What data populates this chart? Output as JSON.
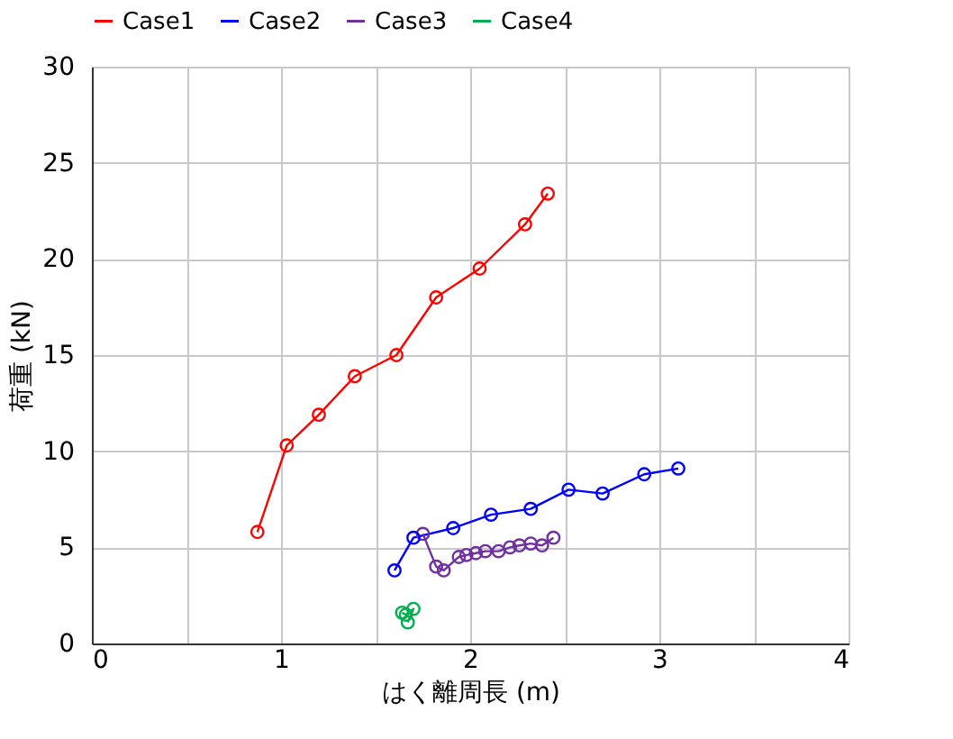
{
  "chart_data": {
    "type": "line",
    "xlabel": "はく離周長 (m)",
    "ylabel": "荷重 (kN)",
    "xlim": [
      0,
      4
    ],
    "ylim": [
      0,
      30
    ],
    "xticks": [
      0,
      {
        "value": 0.5,
        "label": null
      },
      1,
      {
        "value": 1.5,
        "label": null
      },
      2,
      {
        "value": 2.5,
        "label": null
      },
      3,
      {
        "value": 3.5,
        "label": null
      },
      4
    ],
    "yticks": [
      0,
      5,
      10,
      15,
      20,
      25,
      30
    ],
    "grid": true,
    "legend": "top",
    "marker": "circle",
    "line_style": "solid",
    "series": [
      {
        "name": "Case1",
        "color": "#ff0000",
        "x": [
          0.875,
          1.03,
          1.2,
          1.39,
          1.61,
          1.82,
          2.05,
          2.29,
          2.41
        ],
        "values": [
          5.8,
          10.3,
          11.9,
          13.9,
          15.0,
          18.0,
          19.5,
          21.8,
          23.4
        ]
      },
      {
        "name": "Case2",
        "color": "#0000ff",
        "x": [
          1.6,
          1.7,
          1.91,
          2.11,
          2.32,
          2.52,
          2.7,
          2.92,
          3.1
        ],
        "values": [
          3.8,
          5.5,
          6.0,
          6.7,
          7.0,
          8.0,
          7.8,
          8.8,
          9.1
        ]
      },
      {
        "name": "Case3",
        "color": "#7030a0",
        "x": [
          1.75,
          1.82,
          1.86,
          1.94,
          1.98,
          2.03,
          2.08,
          2.15,
          2.21,
          2.26,
          2.32,
          2.38,
          2.44
        ],
        "values": [
          5.7,
          4.0,
          3.8,
          4.5,
          4.6,
          4.7,
          4.8,
          4.8,
          5.0,
          5.1,
          5.2,
          5.1,
          5.5
        ]
      },
      {
        "name": "Case4",
        "color": "#00b050",
        "x": [
          1.64,
          1.66,
          1.7,
          1.67
        ],
        "values": [
          1.6,
          1.5,
          1.8,
          1.1
        ]
      }
    ]
  }
}
